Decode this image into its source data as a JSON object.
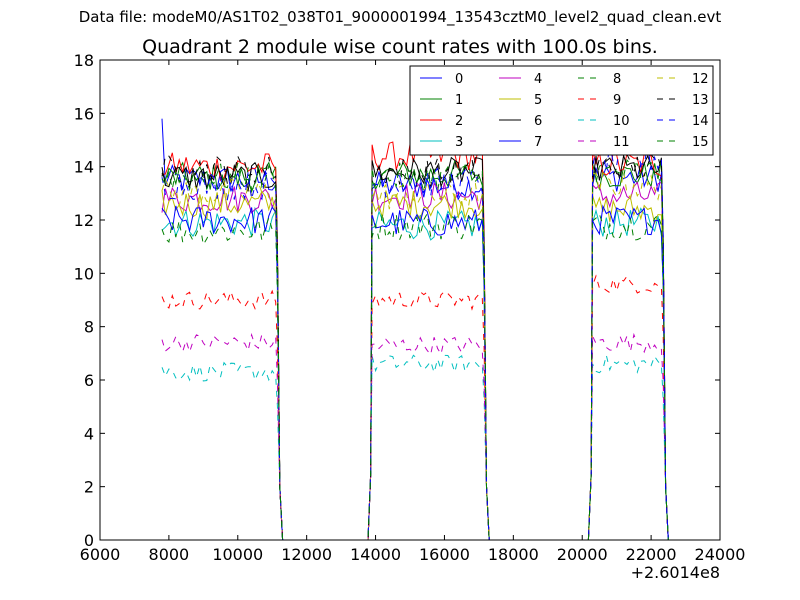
{
  "figure": {
    "suptitle": "Data file: modeM0/AS1T02_038T01_9000001994_13543cztM0_level2_quad_clean.evt"
  },
  "chart_data": {
    "type": "line",
    "title": "Quadrant 2 module wise count rates with 100.0s bins.",
    "xlabel": "",
    "ylabel": "",
    "x_offset_label": "+2.6014e8",
    "xlim": [
      6000,
      24000
    ],
    "ylim": [
      0,
      18
    ],
    "xticks": [
      "6000",
      "8000",
      "10000",
      "12000",
      "14000",
      "16000",
      "18000",
      "20000",
      "22000",
      "24000"
    ],
    "yticks": [
      "0",
      "2",
      "4",
      "6",
      "8",
      "10",
      "12",
      "14",
      "16",
      "18"
    ],
    "grid": false,
    "legend_position": "top-right",
    "legend_columns": 4,
    "segments": [
      [
        7800,
        11300
      ],
      [
        13900,
        17300
      ],
      [
        20300,
        22500
      ]
    ],
    "series": [
      {
        "name": "0",
        "color": "#0000ff",
        "style": "solid",
        "seg_levels": [
          13.5,
          13.3,
          13.6
        ],
        "start_value": 15.8
      },
      {
        "name": "1",
        "color": "#008000",
        "style": "solid",
        "seg_levels": [
          13.6,
          13.7,
          13.7
        ]
      },
      {
        "name": "2",
        "color": "#ff0000",
        "style": "solid",
        "seg_levels": [
          14.0,
          14.4,
          14.1
        ]
      },
      {
        "name": "3",
        "color": "#00bfbf",
        "style": "solid",
        "seg_levels": [
          11.9,
          11.8,
          11.9
        ]
      },
      {
        "name": "4",
        "color": "#bf00bf",
        "style": "solid",
        "seg_levels": [
          12.8,
          12.9,
          12.9
        ]
      },
      {
        "name": "5",
        "color": "#bfbf00",
        "style": "solid",
        "seg_levels": [
          12.6,
          12.6,
          12.4
        ]
      },
      {
        "name": "6",
        "color": "#000000",
        "style": "solid",
        "seg_levels": [
          13.6,
          13.8,
          13.9
        ]
      },
      {
        "name": "7",
        "color": "#0000ff",
        "style": "solid",
        "seg_levels": [
          12.0,
          11.9,
          12.0
        ]
      },
      {
        "name": "8",
        "color": "#008000",
        "style": "dashed",
        "seg_levels": [
          11.6,
          11.8,
          11.8
        ]
      },
      {
        "name": "9",
        "color": "#ff0000",
        "style": "dashed",
        "seg_levels": [
          9.0,
          9.0,
          9.6
        ]
      },
      {
        "name": "10",
        "color": "#00bfbf",
        "style": "dashed",
        "seg_levels": [
          6.3,
          6.6,
          6.6
        ]
      },
      {
        "name": "11",
        "color": "#bf00bf",
        "style": "dashed",
        "seg_levels": [
          7.4,
          7.3,
          7.4
        ]
      },
      {
        "name": "12",
        "color": "#bfbf00",
        "style": "dashed",
        "seg_levels": [
          13.0,
          12.9,
          13.3
        ]
      },
      {
        "name": "13",
        "color": "#000000",
        "style": "dashed",
        "seg_levels": [
          13.9,
          13.8,
          14.0
        ]
      },
      {
        "name": "14",
        "color": "#0000ff",
        "style": "dashed",
        "seg_levels": [
          13.3,
          13.4,
          14.3
        ]
      },
      {
        "name": "15",
        "color": "#008000",
        "style": "dashed",
        "seg_levels": [
          13.6,
          13.6,
          13.8
        ]
      }
    ]
  }
}
